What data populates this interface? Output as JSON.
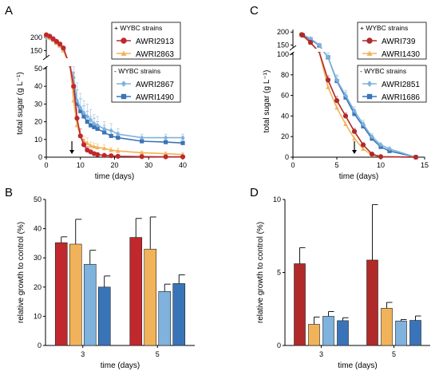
{
  "panels": {
    "A": "A",
    "B": "B",
    "C": "C",
    "D": "D"
  },
  "colors": {
    "AWRI2913": "#c0282d",
    "AWRI2863": "#f1b35a",
    "AWRI2867": "#7fb2dc",
    "AWRI1490": "#3a74b8",
    "AWRI739": "#b02a2a",
    "AWRI1430": "#f1b35a",
    "AWRI2851": "#7fb2dc",
    "AWRI1686": "#3a74b8"
  },
  "chart_data": [
    {
      "id": "A",
      "type": "line",
      "xlabel": "time (days)",
      "ylabel": "total sugar (g L⁻¹)",
      "xlim": [
        0,
        40
      ],
      "xticks": [
        0,
        10,
        20,
        30,
        40
      ],
      "ylim_lower": [
        0,
        50
      ],
      "yticks_lower": [
        0,
        10,
        20,
        30,
        40,
        50
      ],
      "ylim_upper": [
        130,
        215
      ],
      "yticks_upper": [
        150,
        200
      ],
      "axis_break": true,
      "arrow_x": 7.5,
      "legend_groups": [
        {
          "header": "+ WYBC strains",
          "names": [
            "AWRI2913",
            "AWRI2863"
          ]
        },
        {
          "header": "- WYBC strains",
          "names": [
            "AWRI2867",
            "AWRI1490"
          ]
        }
      ],
      "series": [
        {
          "name": "AWRI2913",
          "marker": "circle",
          "x": [
            0,
            1,
            2,
            3,
            4,
            5,
            7,
            8,
            9,
            10,
            11,
            12,
            13,
            14,
            15,
            17,
            19,
            21,
            28,
            35,
            40
          ],
          "y": [
            210,
            205,
            195,
            185,
            175,
            160,
            100,
            40,
            22,
            12,
            7,
            4,
            3,
            2,
            1.5,
            1,
            0.8,
            0.5,
            0.3,
            0.2,
            0.2
          ],
          "err": [
            2,
            2,
            2,
            2,
            2,
            3,
            5,
            8,
            6,
            4,
            3,
            2,
            1,
            1,
            1,
            0.5,
            0.5,
            0.5,
            0.3,
            0.2,
            0.2
          ]
        },
        {
          "name": "AWRI2863",
          "marker": "triangle",
          "x": [
            0,
            1,
            2,
            3,
            4,
            5,
            7,
            8,
            9,
            10,
            11,
            12,
            13,
            14,
            15,
            17,
            19,
            21,
            28,
            35,
            40
          ],
          "y": [
            205,
            200,
            190,
            178,
            168,
            150,
            95,
            32,
            18,
            12,
            9,
            8,
            6.5,
            6,
            5.5,
            5,
            4,
            3.5,
            2.5,
            2,
            1.5
          ],
          "err": [
            2,
            2,
            2,
            2,
            2,
            3,
            5,
            6,
            5,
            4,
            3,
            3,
            2,
            2,
            2,
            2,
            1.5,
            1.5,
            1,
            1,
            1
          ]
        },
        {
          "name": "AWRI2867",
          "marker": "diamond",
          "x": [
            0,
            1,
            2,
            3,
            4,
            5,
            7,
            8,
            9,
            10,
            11,
            12,
            13,
            14,
            15,
            17,
            19,
            21,
            28,
            35,
            40
          ],
          "y": [
            200,
            198,
            190,
            180,
            170,
            155,
            100,
            45,
            32,
            28,
            25,
            23,
            21,
            19,
            18,
            16,
            15,
            13,
            11,
            11,
            11
          ],
          "err": [
            2,
            2,
            2,
            2,
            2,
            3,
            6,
            8,
            10,
            8,
            7,
            7,
            6,
            5,
            5,
            4,
            4,
            3,
            2,
            2,
            2
          ]
        },
        {
          "name": "AWRI1490",
          "marker": "square",
          "x": [
            0,
            1,
            2,
            3,
            4,
            5,
            7,
            8,
            9,
            10,
            11,
            12,
            13,
            14,
            15,
            17,
            19,
            21,
            28,
            35,
            40
          ],
          "y": [
            205,
            200,
            192,
            182,
            172,
            158,
            100,
            40,
            30,
            26,
            23,
            20,
            18,
            17,
            16,
            14,
            12,
            11,
            9,
            8.5,
            8
          ],
          "err": [
            2,
            2,
            2,
            2,
            2,
            3,
            5,
            7,
            8,
            7,
            6,
            6,
            5,
            5,
            4,
            4,
            3,
            3,
            2,
            2,
            2
          ]
        }
      ]
    },
    {
      "id": "B",
      "type": "bar",
      "xlabel": "time (days)",
      "ylabel": "relative growth to control (%)",
      "ylim": [
        0,
        50
      ],
      "yticks": [
        0,
        10,
        20,
        30,
        40,
        50
      ],
      "categories": [
        "3",
        "5"
      ],
      "series": [
        {
          "name": "AWRI2913",
          "values": [
            35.2,
            37.0
          ],
          "err": [
            2.0,
            6.5
          ]
        },
        {
          "name": "AWRI2863",
          "values": [
            34.7,
            33.0
          ],
          "err": [
            8.5,
            11.0
          ]
        },
        {
          "name": "AWRI2867",
          "values": [
            27.8,
            18.5
          ],
          "err": [
            4.8,
            2.5
          ]
        },
        {
          "name": "AWRI1490",
          "values": [
            20.0,
            21.2
          ],
          "err": [
            3.8,
            3.0
          ]
        }
      ]
    },
    {
      "id": "C",
      "type": "line",
      "xlabel": "time (days)",
      "ylabel": "total sugar (g L⁻¹)",
      "xlim": [
        0,
        15
      ],
      "xticks": [
        0,
        5,
        10,
        15
      ],
      "ylim_lower": [
        0,
        100
      ],
      "yticks_lower": [
        0,
        20,
        40,
        60,
        80,
        100
      ],
      "ylim_upper": [
        145,
        210
      ],
      "yticks_upper": [
        150,
        200
      ],
      "axis_break": true,
      "arrow_x": 7,
      "legend_groups": [
        {
          "header": "+ WYBC strains",
          "names": [
            "AWRI739",
            "AWRI1430"
          ]
        },
        {
          "header": "- WYBC strains",
          "names": [
            "AWRI2851",
            "AWRI1686"
          ]
        }
      ],
      "series": [
        {
          "name": "AWRI739",
          "marker": "circle",
          "x": [
            1,
            1.1,
            2,
            3,
            4,
            5,
            6,
            7,
            8,
            9,
            10,
            14
          ],
          "y": [
            190,
            188,
            160,
            140,
            75,
            55,
            40,
            25,
            12,
            3,
            0.5,
            0
          ],
          "err": [
            3,
            3,
            3,
            3,
            4,
            4,
            3,
            3,
            2,
            1,
            0.5,
            0
          ]
        },
        {
          "name": "AWRI1430",
          "marker": "triangle",
          "x": [
            1,
            1.1,
            2,
            3,
            4,
            5,
            6,
            7,
            8,
            9,
            10,
            14
          ],
          "y": [
            188,
            186,
            158,
            135,
            68,
            48,
            32,
            18,
            8,
            2,
            0.5,
            0
          ],
          "err": [
            3,
            3,
            3,
            3,
            4,
            4,
            3,
            3,
            2,
            1,
            0.5,
            0
          ]
        },
        {
          "name": "AWRI2851",
          "marker": "diamond",
          "x": [
            1,
            1.1,
            2,
            3,
            4,
            5,
            6,
            7,
            8,
            9,
            10,
            11,
            14
          ],
          "y": [
            192,
            190,
            175,
            150,
            97,
            75,
            60,
            45,
            32,
            20,
            12,
            8,
            0
          ],
          "err": [
            3,
            3,
            3,
            3,
            4,
            5,
            5,
            4,
            4,
            3,
            2,
            2,
            0
          ]
        },
        {
          "name": "AWRI1686",
          "marker": "square",
          "x": [
            1,
            1.1,
            2,
            3,
            4,
            5,
            6,
            7,
            8,
            9,
            10,
            11,
            14
          ],
          "y": [
            190,
            188,
            172,
            148,
            97,
            74,
            58,
            42,
            30,
            18,
            10,
            6,
            0
          ],
          "err": [
            3,
            3,
            3,
            3,
            4,
            5,
            5,
            4,
            4,
            3,
            2,
            2,
            0
          ]
        }
      ]
    },
    {
      "id": "D",
      "type": "bar",
      "xlabel": "time (days)",
      "ylabel": "relative growth to control (%)",
      "ylim": [
        0,
        10
      ],
      "yticks": [
        0,
        5,
        10
      ],
      "categories": [
        "3",
        "5"
      ],
      "series": [
        {
          "name": "AWRI739",
          "values": [
            5.6,
            5.85
          ],
          "err": [
            1.1,
            3.8
          ]
        },
        {
          "name": "AWRI1430",
          "values": [
            1.45,
            2.55
          ],
          "err": [
            0.5,
            0.4
          ]
        },
        {
          "name": "AWRI2851",
          "values": [
            2.0,
            1.68
          ],
          "err": [
            0.32,
            0.1
          ]
        },
        {
          "name": "AWRI1686",
          "values": [
            1.7,
            1.72
          ],
          "err": [
            0.2,
            0.3
          ]
        }
      ]
    }
  ]
}
